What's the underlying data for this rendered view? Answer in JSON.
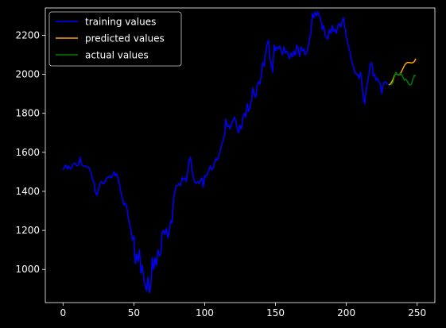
{
  "chart_data": {
    "type": "line",
    "title": "",
    "xlabel": "",
    "ylabel": "",
    "xlim": [
      -12.5,
      262.5
    ],
    "ylim": [
      830,
      2340
    ],
    "xticks": [
      0,
      50,
      100,
      150,
      200,
      250
    ],
    "yticks": [
      1000,
      1200,
      1400,
      1600,
      1800,
      2000,
      2200
    ],
    "grid": false,
    "legend": "top-left",
    "series": [
      {
        "name": "training values",
        "color": "#0000ff",
        "points": [
          [
            0,
            1510
          ],
          [
            1,
            1525
          ],
          [
            2,
            1535
          ],
          [
            3,
            1515
          ],
          [
            4,
            1530
          ],
          [
            5,
            1515
          ],
          [
            6,
            1520
          ],
          [
            7,
            1540
          ],
          [
            8,
            1545
          ],
          [
            9,
            1540
          ],
          [
            10,
            1530
          ],
          [
            11,
            1535
          ],
          [
            12,
            1575
          ],
          [
            13,
            1540
          ],
          [
            14,
            1530
          ],
          [
            15,
            1530
          ],
          [
            16,
            1528
          ],
          [
            17,
            1525
          ],
          [
            18,
            1525
          ],
          [
            19,
            1510
          ],
          [
            20,
            1490
          ],
          [
            21,
            1460
          ],
          [
            22,
            1440
          ],
          [
            23,
            1390
          ],
          [
            24,
            1380
          ],
          [
            25,
            1410
          ],
          [
            26,
            1440
          ],
          [
            27,
            1450
          ],
          [
            28,
            1440
          ],
          [
            29,
            1440
          ],
          [
            30,
            1455
          ],
          [
            31,
            1470
          ],
          [
            32,
            1470
          ],
          [
            33,
            1480
          ],
          [
            34,
            1470
          ],
          [
            35,
            1480
          ],
          [
            36,
            1500
          ],
          [
            37,
            1480
          ],
          [
            38,
            1490
          ],
          [
            39,
            1460
          ],
          [
            40,
            1430
          ],
          [
            41,
            1390
          ],
          [
            42,
            1360
          ],
          [
            43,
            1330
          ],
          [
            44,
            1340
          ],
          [
            45,
            1320
          ],
          [
            46,
            1270
          ],
          [
            47,
            1230
          ],
          [
            48,
            1200
          ],
          [
            49,
            1150
          ],
          [
            50,
            1170
          ],
          [
            51,
            1030
          ],
          [
            52,
            1080
          ],
          [
            53,
            1040
          ],
          [
            54,
            1100
          ],
          [
            55,
            980
          ],
          [
            56,
            1020
          ],
          [
            57,
            950
          ],
          [
            58,
            920
          ],
          [
            59,
            890
          ],
          [
            60,
            960
          ],
          [
            61,
            880
          ],
          [
            62,
            920
          ],
          [
            63,
            1060
          ],
          [
            64,
            1000
          ],
          [
            65,
            1060
          ],
          [
            66,
            1020
          ],
          [
            67,
            1100
          ],
          [
            68,
            1070
          ],
          [
            69,
            1080
          ],
          [
            70,
            1190
          ],
          [
            71,
            1200
          ],
          [
            72,
            1180
          ],
          [
            73,
            1210
          ],
          [
            74,
            1160
          ],
          [
            75,
            1200
          ],
          [
            76,
            1250
          ],
          [
            77,
            1240
          ],
          [
            78,
            1360
          ],
          [
            79,
            1400
          ],
          [
            80,
            1430
          ],
          [
            81,
            1430
          ],
          [
            82,
            1440
          ],
          [
            83,
            1430
          ],
          [
            84,
            1470
          ],
          [
            85,
            1460
          ],
          [
            86,
            1470
          ],
          [
            87,
            1450
          ],
          [
            88,
            1500
          ],
          [
            89,
            1560
          ],
          [
            90,
            1575
          ],
          [
            91,
            1510
          ],
          [
            92,
            1470
          ],
          [
            93,
            1450
          ],
          [
            94,
            1440
          ],
          [
            95,
            1450
          ],
          [
            96,
            1440
          ],
          [
            97,
            1455
          ],
          [
            98,
            1470
          ],
          [
            99,
            1420
          ],
          [
            100,
            1480
          ],
          [
            101,
            1475
          ],
          [
            102,
            1490
          ],
          [
            103,
            1510
          ],
          [
            104,
            1530
          ],
          [
            105,
            1510
          ],
          [
            106,
            1520
          ],
          [
            107,
            1550
          ],
          [
            108,
            1570
          ],
          [
            109,
            1560
          ],
          [
            110,
            1580
          ],
          [
            111,
            1610
          ],
          [
            112,
            1640
          ],
          [
            113,
            1660
          ],
          [
            114,
            1690
          ],
          [
            115,
            1770
          ],
          [
            116,
            1730
          ],
          [
            117,
            1740
          ],
          [
            118,
            1720
          ],
          [
            119,
            1750
          ],
          [
            120,
            1760
          ],
          [
            121,
            1780
          ],
          [
            122,
            1760
          ],
          [
            123,
            1720
          ],
          [
            124,
            1700
          ],
          [
            125,
            1740
          ],
          [
            126,
            1720
          ],
          [
            127,
            1780
          ],
          [
            128,
            1800
          ],
          [
            129,
            1780
          ],
          [
            130,
            1850
          ],
          [
            131,
            1810
          ],
          [
            132,
            1830
          ],
          [
            133,
            1870
          ],
          [
            134,
            1930
          ],
          [
            135,
            1900
          ],
          [
            136,
            1880
          ],
          [
            137,
            1940
          ],
          [
            138,
            1960
          ],
          [
            139,
            1950
          ],
          [
            140,
            2000
          ],
          [
            141,
            2060
          ],
          [
            142,
            2040
          ],
          [
            143,
            2110
          ],
          [
            144,
            2150
          ],
          [
            145,
            2175
          ],
          [
            146,
            2080
          ],
          [
            147,
            2050
          ],
          [
            148,
            2010
          ],
          [
            149,
            2150
          ],
          [
            150,
            2120
          ],
          [
            151,
            2140
          ],
          [
            152,
            2130
          ],
          [
            153,
            2145
          ],
          [
            154,
            2120
          ],
          [
            155,
            2100
          ],
          [
            156,
            2140
          ],
          [
            157,
            2110
          ],
          [
            158,
            2120
          ],
          [
            159,
            2100
          ],
          [
            160,
            2080
          ],
          [
            161,
            2110
          ],
          [
            162,
            2090
          ],
          [
            163,
            2120
          ],
          [
            164,
            2100
          ],
          [
            165,
            2150
          ],
          [
            166,
            2130
          ],
          [
            167,
            2090
          ],
          [
            168,
            2140
          ],
          [
            169,
            2120
          ],
          [
            170,
            2130
          ],
          [
            171,
            2100
          ],
          [
            172,
            2110
          ],
          [
            173,
            2140
          ],
          [
            174,
            2180
          ],
          [
            175,
            2210
          ],
          [
            176,
            2310
          ],
          [
            177,
            2290
          ],
          [
            178,
            2320
          ],
          [
            179,
            2300
          ],
          [
            180,
            2320
          ],
          [
            181,
            2300
          ],
          [
            182,
            2280
          ],
          [
            183,
            2230
          ],
          [
            184,
            2250
          ],
          [
            185,
            2200
          ],
          [
            186,
            2190
          ],
          [
            187,
            2180
          ],
          [
            188,
            2230
          ],
          [
            189,
            2210
          ],
          [
            190,
            2250
          ],
          [
            191,
            2220
          ],
          [
            192,
            2230
          ],
          [
            193,
            2210
          ],
          [
            194,
            2250
          ],
          [
            195,
            2260
          ],
          [
            196,
            2240
          ],
          [
            197,
            2270
          ],
          [
            198,
            2290
          ],
          [
            199,
            2240
          ],
          [
            200,
            2190
          ],
          [
            201,
            2160
          ],
          [
            202,
            2130
          ],
          [
            203,
            2100
          ],
          [
            204,
            2060
          ],
          [
            205,
            2040
          ],
          [
            206,
            2010
          ],
          [
            207,
            2000
          ],
          [
            208,
            2000
          ],
          [
            209,
            1980
          ],
          [
            210,
            2010
          ],
          [
            211,
            1950
          ],
          [
            212,
            1880
          ],
          [
            213,
            1850
          ],
          [
            214,
            1920
          ],
          [
            215,
            1960
          ],
          [
            216,
            2000
          ],
          [
            217,
            2050
          ],
          [
            218,
            2060
          ],
          [
            219,
            1990
          ],
          [
            220,
            2000
          ],
          [
            221,
            1970
          ],
          [
            222,
            1980
          ],
          [
            223,
            1960
          ],
          [
            224,
            1950
          ],
          [
            225,
            1900
          ],
          [
            226,
            1950
          ],
          [
            227,
            1960
          ],
          [
            228,
            1960
          ],
          [
            229,
            1950
          ],
          [
            230,
            1945
          ]
        ]
      },
      {
        "name": "predicted values",
        "color": "#ffa500",
        "points": [
          [
            230,
            1945
          ],
          [
            231,
            1950
          ],
          [
            232,
            1960
          ],
          [
            233,
            1975
          ],
          [
            234,
            1995
          ],
          [
            235,
            2005
          ],
          [
            236,
            2000
          ],
          [
            237,
            1995
          ],
          [
            238,
            2000
          ],
          [
            239,
            2015
          ],
          [
            240,
            2030
          ],
          [
            241,
            2045
          ],
          [
            242,
            2055
          ],
          [
            243,
            2060
          ],
          [
            244,
            2060
          ],
          [
            245,
            2060
          ],
          [
            246,
            2058
          ],
          [
            247,
            2060
          ],
          [
            248,
            2065
          ],
          [
            249,
            2080
          ]
        ]
      },
      {
        "name": "actual values",
        "color": "#008000",
        "points": [
          [
            231,
            1945
          ],
          [
            232,
            1950
          ],
          [
            233,
            1960
          ],
          [
            234,
            1990
          ],
          [
            235,
            2010
          ],
          [
            236,
            2000
          ],
          [
            237,
            1995
          ],
          [
            238,
            2005
          ],
          [
            239,
            2000
          ],
          [
            240,
            1985
          ],
          [
            241,
            1970
          ],
          [
            242,
            1975
          ],
          [
            243,
            1965
          ],
          [
            244,
            1950
          ],
          [
            245,
            1945
          ],
          [
            246,
            1950
          ],
          [
            247,
            1975
          ],
          [
            248,
            1995
          ],
          [
            249,
            1990
          ]
        ]
      }
    ]
  }
}
